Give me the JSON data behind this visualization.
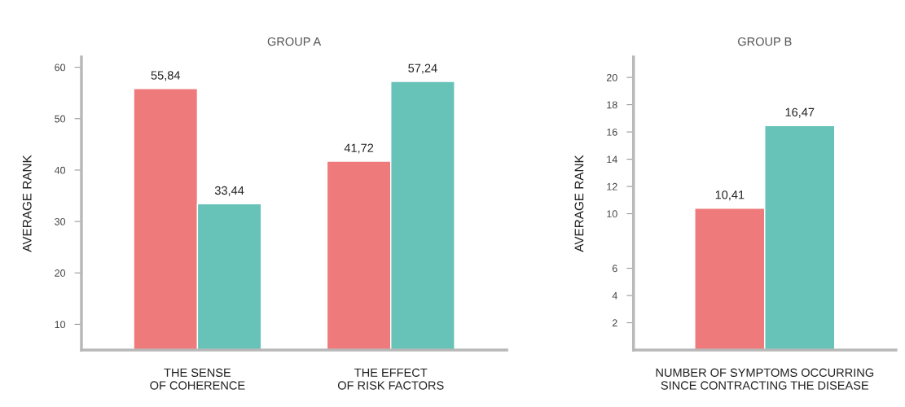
{
  "chart_data": [
    {
      "type": "bar",
      "title": "GROUP A",
      "ylabel": "AVERAGE RANK",
      "categories": [
        "THE SENSE\nOF COHERENCE",
        "THE EFFECT\nOF RISK FACTORS"
      ],
      "series": [
        {
          "color": "#ef7a7b",
          "values": [
            55.84,
            41.72
          ],
          "value_labels": [
            "55,84",
            "41,72"
          ]
        },
        {
          "color": "#67c3b8",
          "values": [
            33.44,
            57.24
          ],
          "value_labels": [
            "33,44",
            "57,24"
          ]
        }
      ],
      "ylim": [
        5,
        62
      ],
      "yticks": [
        10,
        20,
        30,
        40,
        50,
        60
      ],
      "grid": false,
      "legend": false
    },
    {
      "type": "bar",
      "title": "GROUP B",
      "ylabel": "AVERAGE RANK",
      "categories": [
        "NUMBER OF SYMPTOMS OCCURRING\nSINCE CONTRACTING THE DISEASE"
      ],
      "series": [
        {
          "color": "#ef7a7b",
          "values": [
            10.41
          ],
          "value_labels": [
            "10,41"
          ]
        },
        {
          "color": "#67c3b8",
          "values": [
            16.47
          ],
          "value_labels": [
            "16,47"
          ]
        }
      ],
      "ylim": [
        0,
        21.5
      ],
      "yticks": [
        2,
        4,
        6,
        10,
        12,
        14,
        16,
        18,
        20
      ],
      "grid": false,
      "legend": false
    }
  ]
}
